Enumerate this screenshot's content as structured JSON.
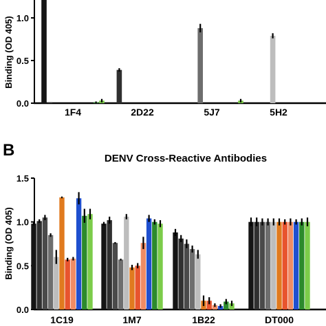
{
  "panel_b_letter": "B",
  "chart_data": [
    {
      "type": "bar",
      "title": "",
      "ylabel": "Binding (OD 405)",
      "ylim": [
        0,
        1.25
      ],
      "yticks": [
        "0.0",
        "0.5",
        "1.0"
      ],
      "categories": [
        "1F4",
        "2D22",
        "5J7",
        "5H2"
      ],
      "bar_colors": [
        "#151515",
        "#303030",
        "#4a4a4a",
        "#6e6e6e",
        "#bdbdbd",
        "#e07a1f",
        "#e8542e",
        "#f08c64",
        "#1f4fcf",
        "#2c8a2c",
        "#7ccc4a"
      ],
      "values": [
        [
          1.25,
          0.01,
          0.0,
          0.0,
          0.0,
          0.0,
          0.0,
          0.0,
          0.0,
          0.01,
          0.03
        ],
        [
          0.0,
          0.39,
          0.0,
          0.0,
          0.0,
          0.0,
          0.0,
          0.0,
          0.0,
          0.0,
          0.0
        ],
        [
          0.0,
          0.0,
          0.0,
          0.88,
          0.0,
          0.0,
          0.0,
          0.0,
          0.0,
          0.0,
          0.03
        ],
        [
          0.0,
          0.0,
          0.0,
          0.0,
          0.79,
          0.0,
          0.0,
          0.0,
          0.0,
          0.0,
          0.0
        ]
      ],
      "errors": [
        [
          0.02,
          0.0,
          0.0,
          0.0,
          0.0,
          0.0,
          0.0,
          0.0,
          0.0,
          0.01,
          0.02
        ],
        [
          0.0,
          0.02,
          0.0,
          0.0,
          0.0,
          0.0,
          0.0,
          0.0,
          0.0,
          0.0,
          0.0
        ],
        [
          0.0,
          0.0,
          0.0,
          0.05,
          0.0,
          0.0,
          0.0,
          0.0,
          0.0,
          0.0,
          0.02
        ],
        [
          0.0,
          0.0,
          0.0,
          0.0,
          0.03,
          0.0,
          0.0,
          0.0,
          0.0,
          0.0,
          0.0
        ]
      ]
    },
    {
      "type": "bar",
      "title": "DENV Cross-Reactive Antibodies",
      "ylabel": "Binding (OD 405)",
      "ylim": [
        0,
        1.5
      ],
      "yticks": [
        "0.0",
        "0.5",
        "1.0",
        "1.5"
      ],
      "categories": [
        "1C19",
        "1M7",
        "1B22",
        "DT000"
      ],
      "bar_colors": [
        "#151515",
        "#303030",
        "#4a4a4a",
        "#6e6e6e",
        "#bdbdbd",
        "#e07a1f",
        "#e8542e",
        "#f08c64",
        "#1f4fcf",
        "#2c8a2c",
        "#7ccc4a"
      ],
      "values": [
        [
          0.98,
          1.01,
          1.05,
          0.85,
          0.6,
          1.28,
          0.57,
          0.58,
          1.27,
          1.07,
          1.09
        ],
        [
          0.98,
          1.02,
          0.76,
          0.57,
          1.06,
          0.48,
          0.5,
          0.76,
          1.04,
          1.0,
          0.98
        ],
        [
          0.88,
          0.81,
          0.75,
          0.69,
          0.63,
          0.1,
          0.1,
          0.05,
          0.04,
          0.09,
          0.07
        ],
        [
          1.0,
          1.0,
          1.0,
          1.0,
          1.0,
          1.0,
          1.0,
          1.0,
          1.0,
          1.0,
          1.0
        ]
      ],
      "errors": [
        [
          0.02,
          0.02,
          0.03,
          0.02,
          0.08,
          0.01,
          0.02,
          0.02,
          0.07,
          0.08,
          0.06
        ],
        [
          0.02,
          0.04,
          0.01,
          0.01,
          0.03,
          0.03,
          0.03,
          0.07,
          0.04,
          0.03,
          0.04
        ],
        [
          0.04,
          0.04,
          0.05,
          0.04,
          0.05,
          0.06,
          0.04,
          0.02,
          0.02,
          0.03,
          0.03
        ],
        [
          0.05,
          0.05,
          0.04,
          0.04,
          0.04,
          0.04,
          0.03,
          0.04,
          0.03,
          0.04,
          0.05
        ]
      ]
    }
  ]
}
